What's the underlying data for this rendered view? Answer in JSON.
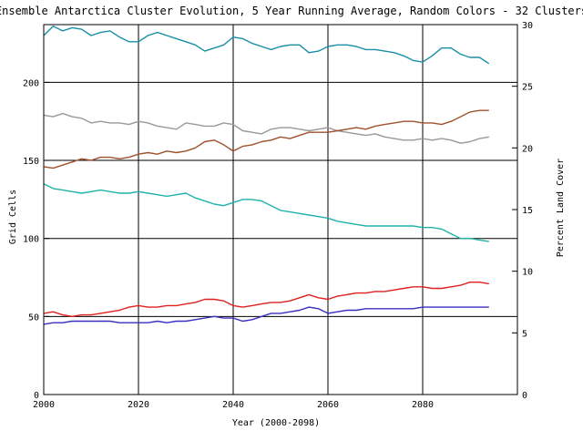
{
  "chart_data": {
    "type": "line",
    "title": "Ensemble Antarctica Cluster Evolution, 5 Year Running Average, Random Colors - 32 Clusters",
    "xlabel": "Year (2000-2098)",
    "ylabel": "Grid Cells",
    "y2label": "Percent Land Cover",
    "xlim": [
      2000,
      2100
    ],
    "ylim": [
      0,
      237
    ],
    "y2lim": [
      0,
      30
    ],
    "x_ticks": [
      2000,
      2020,
      2040,
      2060,
      2080
    ],
    "y_ticks": [
      0,
      50,
      100,
      150,
      200
    ],
    "y2_ticks": [
      0,
      5,
      10,
      15,
      20,
      25,
      30
    ],
    "grid": true,
    "series": [
      {
        "color": "#1a8fa8",
        "x": [
          2000,
          2002,
          2004,
          2006,
          2008,
          2010,
          2012,
          2014,
          2016,
          2018,
          2020,
          2022,
          2024,
          2026,
          2028,
          2030,
          2032,
          2034,
          2036,
          2038,
          2040,
          2042,
          2044,
          2046,
          2048,
          2050,
          2052,
          2054,
          2056,
          2058,
          2060,
          2062,
          2064,
          2066,
          2068,
          2070,
          2072,
          2074,
          2076,
          2078,
          2080,
          2082,
          2084,
          2086,
          2088,
          2090,
          2092,
          2094
        ],
        "y": [
          230,
          236,
          233,
          235,
          234,
          230,
          232,
          233,
          229,
          226,
          226,
          230,
          232,
          230,
          228,
          226,
          224,
          220,
          222,
          224,
          229,
          228,
          225,
          223,
          221,
          223,
          224,
          224,
          219,
          220,
          223,
          224,
          224,
          223,
          221,
          221,
          220,
          219,
          217,
          214,
          213,
          217,
          222,
          222,
          218,
          216,
          216,
          212
        ]
      },
      {
        "color": "#999999",
        "x": [
          2000,
          2002,
          2004,
          2006,
          2008,
          2010,
          2012,
          2014,
          2016,
          2018,
          2020,
          2022,
          2024,
          2026,
          2028,
          2030,
          2032,
          2034,
          2036,
          2038,
          2040,
          2042,
          2044,
          2046,
          2048,
          2050,
          2052,
          2054,
          2056,
          2058,
          2060,
          2062,
          2064,
          2066,
          2068,
          2070,
          2072,
          2074,
          2076,
          2078,
          2080,
          2082,
          2084,
          2086,
          2088,
          2090,
          2092,
          2094
        ],
        "y": [
          179,
          178,
          180,
          178,
          177,
          174,
          175,
          174,
          174,
          173,
          175,
          174,
          172,
          171,
          170,
          174,
          173,
          172,
          172,
          174,
          173,
          169,
          168,
          167,
          170,
          171,
          171,
          170,
          169,
          170,
          171,
          169,
          168,
          167,
          166,
          167,
          165,
          164,
          163,
          163,
          164,
          163,
          164,
          163,
          161,
          162,
          164,
          165
        ]
      },
      {
        "color": "#a0522d",
        "x": [
          2000,
          2002,
          2004,
          2006,
          2008,
          2010,
          2012,
          2014,
          2016,
          2018,
          2020,
          2022,
          2024,
          2026,
          2028,
          2030,
          2032,
          2034,
          2036,
          2038,
          2040,
          2042,
          2044,
          2046,
          2048,
          2050,
          2052,
          2054,
          2056,
          2058,
          2060,
          2062,
          2064,
          2066,
          2068,
          2070,
          2072,
          2074,
          2076,
          2078,
          2080,
          2082,
          2084,
          2086,
          2088,
          2090,
          2092,
          2094
        ],
        "y": [
          146,
          145,
          147,
          149,
          151,
          150,
          152,
          152,
          151,
          152,
          154,
          155,
          154,
          156,
          155,
          156,
          158,
          162,
          163,
          160,
          156,
          159,
          160,
          162,
          163,
          165,
          164,
          166,
          168,
          168,
          168,
          169,
          170,
          171,
          170,
          172,
          173,
          174,
          175,
          175,
          174,
          174,
          173,
          175,
          178,
          181,
          182,
          182
        ]
      },
      {
        "color": "#20b2aa",
        "x": [
          2000,
          2002,
          2004,
          2006,
          2008,
          2010,
          2012,
          2014,
          2016,
          2018,
          2020,
          2022,
          2024,
          2026,
          2028,
          2030,
          2032,
          2034,
          2036,
          2038,
          2040,
          2042,
          2044,
          2046,
          2048,
          2050,
          2052,
          2054,
          2056,
          2058,
          2060,
          2062,
          2064,
          2066,
          2068,
          2070,
          2072,
          2074,
          2076,
          2078,
          2080,
          2082,
          2084,
          2086,
          2088,
          2090,
          2092,
          2094
        ],
        "y": [
          135,
          132,
          131,
          130,
          129,
          130,
          131,
          130,
          129,
          129,
          130,
          129,
          128,
          127,
          128,
          129,
          126,
          124,
          122,
          121,
          123,
          125,
          125,
          124,
          121,
          118,
          117,
          116,
          115,
          114,
          113,
          111,
          110,
          109,
          108,
          108,
          108,
          108,
          108,
          108,
          107,
          107,
          106,
          103,
          100,
          100,
          99,
          98
        ]
      },
      {
        "color": "#e02020",
        "x": [
          2000,
          2002,
          2004,
          2006,
          2008,
          2010,
          2012,
          2014,
          2016,
          2018,
          2020,
          2022,
          2024,
          2026,
          2028,
          2030,
          2032,
          2034,
          2036,
          2038,
          2040,
          2042,
          2044,
          2046,
          2048,
          2050,
          2052,
          2054,
          2056,
          2058,
          2060,
          2062,
          2064,
          2066,
          2068,
          2070,
          2072,
          2074,
          2076,
          2078,
          2080,
          2082,
          2084,
          2086,
          2088,
          2090,
          2092,
          2094
        ],
        "y": [
          52,
          53,
          51,
          50,
          51,
          51,
          52,
          53,
          54,
          56,
          57,
          56,
          56,
          57,
          57,
          58,
          59,
          61,
          61,
          60,
          57,
          56,
          57,
          58,
          59,
          59,
          60,
          62,
          64,
          62,
          61,
          63,
          64,
          65,
          65,
          66,
          66,
          67,
          68,
          69,
          69,
          68,
          68,
          69,
          70,
          72,
          72,
          71
        ]
      },
      {
        "color": "#3a2fc0",
        "x": [
          2000,
          2002,
          2004,
          2006,
          2008,
          2010,
          2012,
          2014,
          2016,
          2018,
          2020,
          2022,
          2024,
          2026,
          2028,
          2030,
          2032,
          2034,
          2036,
          2038,
          2040,
          2042,
          2044,
          2046,
          2048,
          2050,
          2052,
          2054,
          2056,
          2058,
          2060,
          2062,
          2064,
          2066,
          2068,
          2070,
          2072,
          2074,
          2076,
          2078,
          2080,
          2082,
          2084,
          2086,
          2088,
          2090,
          2092,
          2094
        ],
        "y": [
          45,
          46,
          46,
          47,
          47,
          47,
          47,
          47,
          46,
          46,
          46,
          46,
          47,
          46,
          47,
          47,
          48,
          49,
          50,
          49,
          49,
          47,
          48,
          50,
          52,
          52,
          53,
          54,
          56,
          55,
          52,
          53,
          54,
          54,
          55,
          55,
          55,
          55,
          55,
          55,
          56,
          56,
          56,
          56,
          56,
          56,
          56,
          56
        ]
      }
    ]
  }
}
